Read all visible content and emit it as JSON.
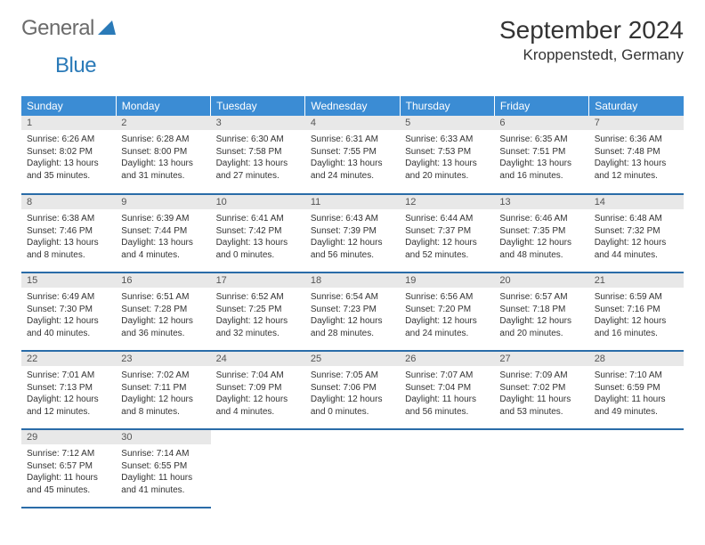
{
  "logo": {
    "part1": "General",
    "part2": "Blue"
  },
  "title": "September 2024",
  "location": "Kroppenstedt, Germany",
  "colors": {
    "header_bg": "#3b8cd4",
    "header_text": "#ffffff",
    "row_border": "#2a6ca8",
    "daynum_bg": "#e8e8e8",
    "logo_gray": "#6b6b6b",
    "logo_blue": "#2a7ab8"
  },
  "weekdays": [
    "Sunday",
    "Monday",
    "Tuesday",
    "Wednesday",
    "Thursday",
    "Friday",
    "Saturday"
  ],
  "weeks": [
    [
      {
        "n": "1",
        "sunrise": "6:26 AM",
        "sunset": "8:02 PM",
        "dl": "13 hours and 35 minutes."
      },
      {
        "n": "2",
        "sunrise": "6:28 AM",
        "sunset": "8:00 PM",
        "dl": "13 hours and 31 minutes."
      },
      {
        "n": "3",
        "sunrise": "6:30 AM",
        "sunset": "7:58 PM",
        "dl": "13 hours and 27 minutes."
      },
      {
        "n": "4",
        "sunrise": "6:31 AM",
        "sunset": "7:55 PM",
        "dl": "13 hours and 24 minutes."
      },
      {
        "n": "5",
        "sunrise": "6:33 AM",
        "sunset": "7:53 PM",
        "dl": "13 hours and 20 minutes."
      },
      {
        "n": "6",
        "sunrise": "6:35 AM",
        "sunset": "7:51 PM",
        "dl": "13 hours and 16 minutes."
      },
      {
        "n": "7",
        "sunrise": "6:36 AM",
        "sunset": "7:48 PM",
        "dl": "13 hours and 12 minutes."
      }
    ],
    [
      {
        "n": "8",
        "sunrise": "6:38 AM",
        "sunset": "7:46 PM",
        "dl": "13 hours and 8 minutes."
      },
      {
        "n": "9",
        "sunrise": "6:39 AM",
        "sunset": "7:44 PM",
        "dl": "13 hours and 4 minutes."
      },
      {
        "n": "10",
        "sunrise": "6:41 AM",
        "sunset": "7:42 PM",
        "dl": "13 hours and 0 minutes."
      },
      {
        "n": "11",
        "sunrise": "6:43 AM",
        "sunset": "7:39 PM",
        "dl": "12 hours and 56 minutes."
      },
      {
        "n": "12",
        "sunrise": "6:44 AM",
        "sunset": "7:37 PM",
        "dl": "12 hours and 52 minutes."
      },
      {
        "n": "13",
        "sunrise": "6:46 AM",
        "sunset": "7:35 PM",
        "dl": "12 hours and 48 minutes."
      },
      {
        "n": "14",
        "sunrise": "6:48 AM",
        "sunset": "7:32 PM",
        "dl": "12 hours and 44 minutes."
      }
    ],
    [
      {
        "n": "15",
        "sunrise": "6:49 AM",
        "sunset": "7:30 PM",
        "dl": "12 hours and 40 minutes."
      },
      {
        "n": "16",
        "sunrise": "6:51 AM",
        "sunset": "7:28 PM",
        "dl": "12 hours and 36 minutes."
      },
      {
        "n": "17",
        "sunrise": "6:52 AM",
        "sunset": "7:25 PM",
        "dl": "12 hours and 32 minutes."
      },
      {
        "n": "18",
        "sunrise": "6:54 AM",
        "sunset": "7:23 PM",
        "dl": "12 hours and 28 minutes."
      },
      {
        "n": "19",
        "sunrise": "6:56 AM",
        "sunset": "7:20 PM",
        "dl": "12 hours and 24 minutes."
      },
      {
        "n": "20",
        "sunrise": "6:57 AM",
        "sunset": "7:18 PM",
        "dl": "12 hours and 20 minutes."
      },
      {
        "n": "21",
        "sunrise": "6:59 AM",
        "sunset": "7:16 PM",
        "dl": "12 hours and 16 minutes."
      }
    ],
    [
      {
        "n": "22",
        "sunrise": "7:01 AM",
        "sunset": "7:13 PM",
        "dl": "12 hours and 12 minutes."
      },
      {
        "n": "23",
        "sunrise": "7:02 AM",
        "sunset": "7:11 PM",
        "dl": "12 hours and 8 minutes."
      },
      {
        "n": "24",
        "sunrise": "7:04 AM",
        "sunset": "7:09 PM",
        "dl": "12 hours and 4 minutes."
      },
      {
        "n": "25",
        "sunrise": "7:05 AM",
        "sunset": "7:06 PM",
        "dl": "12 hours and 0 minutes."
      },
      {
        "n": "26",
        "sunrise": "7:07 AM",
        "sunset": "7:04 PM",
        "dl": "11 hours and 56 minutes."
      },
      {
        "n": "27",
        "sunrise": "7:09 AM",
        "sunset": "7:02 PM",
        "dl": "11 hours and 53 minutes."
      },
      {
        "n": "28",
        "sunrise": "7:10 AM",
        "sunset": "6:59 PM",
        "dl": "11 hours and 49 minutes."
      }
    ],
    [
      {
        "n": "29",
        "sunrise": "7:12 AM",
        "sunset": "6:57 PM",
        "dl": "11 hours and 45 minutes."
      },
      {
        "n": "30",
        "sunrise": "7:14 AM",
        "sunset": "6:55 PM",
        "dl": "11 hours and 41 minutes."
      },
      null,
      null,
      null,
      null,
      null
    ]
  ],
  "labels": {
    "sunrise": "Sunrise: ",
    "sunset": "Sunset: ",
    "daylight": "Daylight: "
  }
}
